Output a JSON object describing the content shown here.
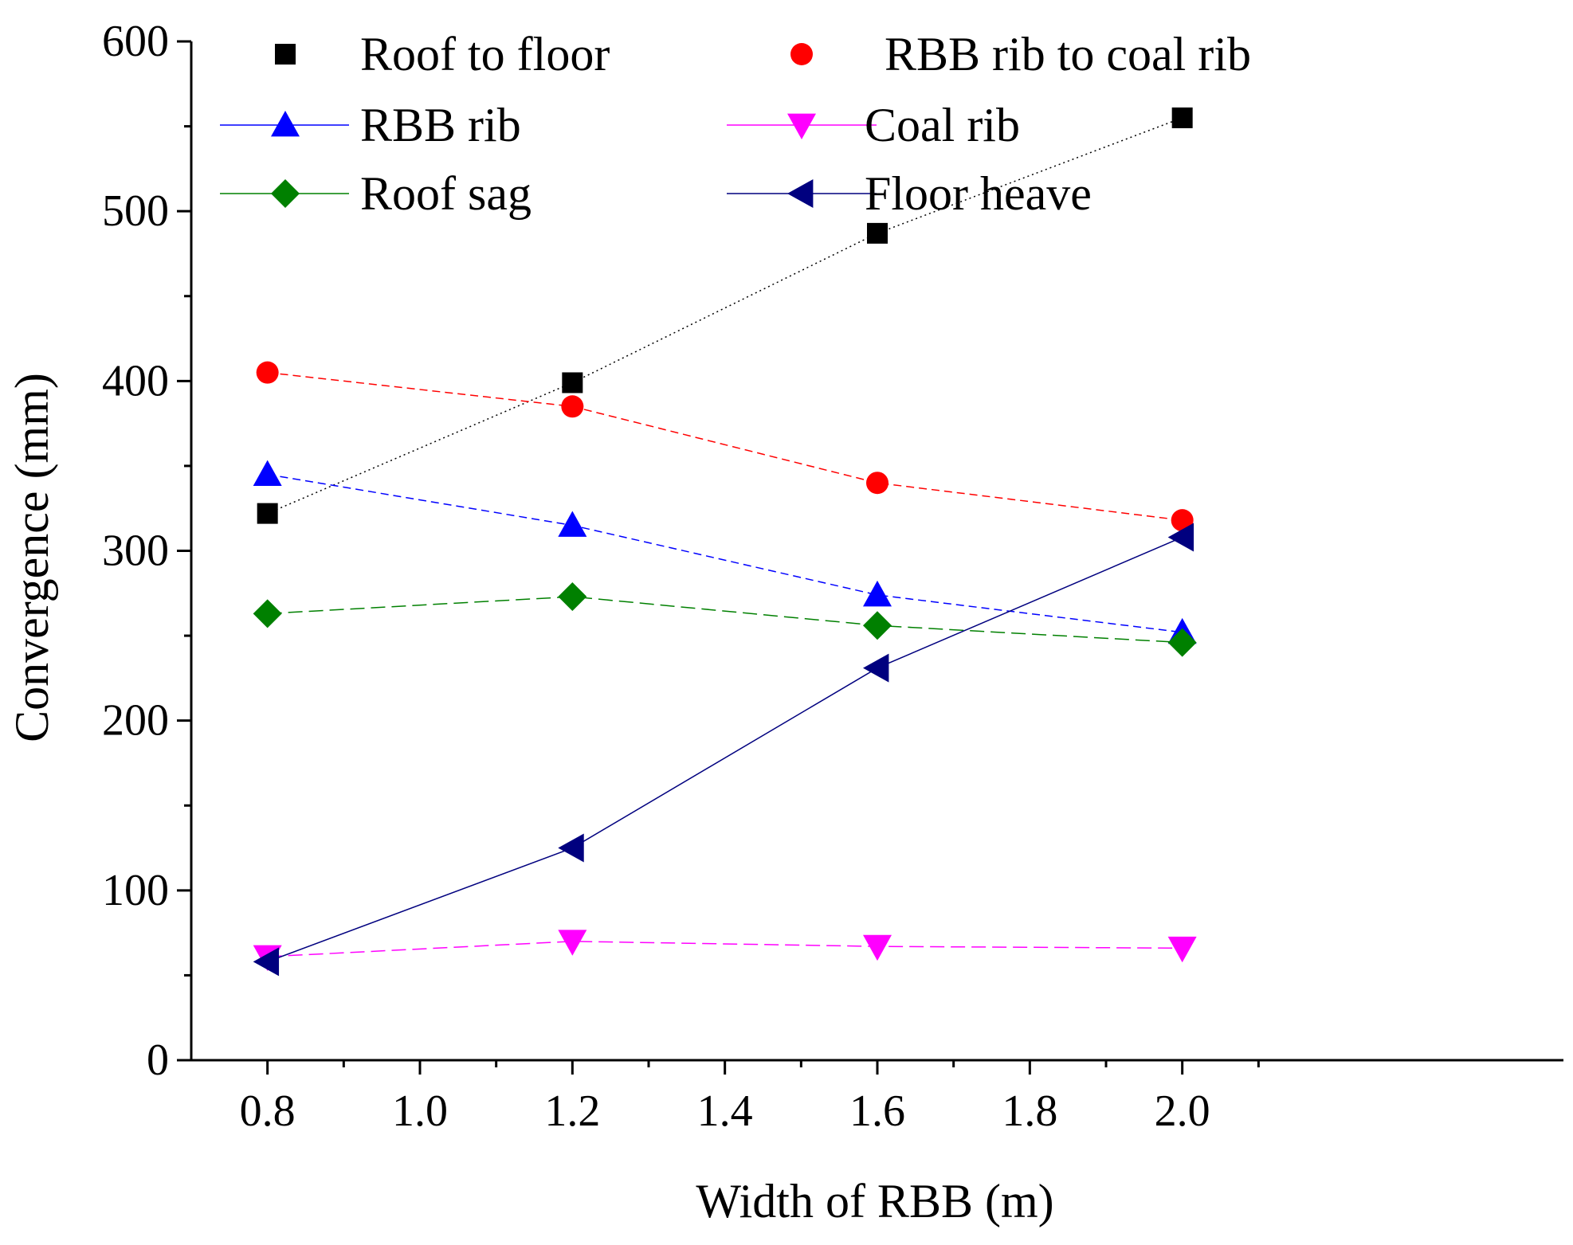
{
  "chart_data": {
    "type": "line",
    "title": "",
    "xlabel": "Width of RBB (m)",
    "ylabel": "Convergence (mm)",
    "xlim": [
      0.7,
      2.5
    ],
    "ylim": [
      0,
      600
    ],
    "xticks": [
      "0.8",
      "1.0",
      "1.2",
      "1.4",
      "1.6",
      "1.8",
      "2.0"
    ],
    "yticks": [
      "0",
      "100",
      "200",
      "300",
      "400",
      "500",
      "600"
    ],
    "grid": false,
    "legend_position": "top",
    "x": [
      0.8,
      1.2,
      1.6,
      2.0
    ],
    "series": [
      {
        "name": "Roof to floor",
        "values": [
          322,
          399,
          487,
          555
        ],
        "color": "#000000",
        "marker": "square",
        "dash": "2 4"
      },
      {
        "name": "RBB rib to coal rib",
        "values": [
          405,
          385,
          340,
          318
        ],
        "color": "#ff0000",
        "marker": "circle",
        "dash": "10 6"
      },
      {
        "name": "RBB rib",
        "values": [
          345,
          315,
          274,
          252
        ],
        "color": "#0000ff",
        "marker": "triangle-up",
        "dash": "10 6"
      },
      {
        "name": "Coal rib",
        "values": [
          61,
          70,
          67,
          66
        ],
        "color": "#ff00ff",
        "marker": "triangle-down",
        "dash": "18 8"
      },
      {
        "name": "Roof sag",
        "values": [
          263,
          273,
          256,
          246
        ],
        "color": "#008000",
        "marker": "diamond",
        "dash": "18 8"
      },
      {
        "name": "Floor heave",
        "values": [
          58,
          125,
          231,
          308
        ],
        "color": "#00007f",
        "marker": "triangle-left",
        "dash": ""
      }
    ]
  }
}
